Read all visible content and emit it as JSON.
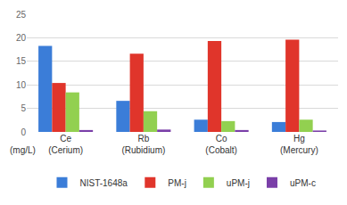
{
  "chart_data": {
    "type": "bar",
    "categories": [
      "Ce\n(Cerium)",
      "Rb\n(Rubidium)",
      "Co\n(Cobalt)",
      "Hg\n(Mercury)"
    ],
    "series": [
      {
        "name": "NIST-1648a",
        "color": "#3b7dd8",
        "values": [
          18.3,
          6.6,
          2.6,
          2.1
        ]
      },
      {
        "name": "PM-j",
        "color": "#e0352b",
        "values": [
          10.4,
          16.6,
          19.3,
          19.6
        ]
      },
      {
        "name": "uPM-j",
        "color": "#92d050",
        "values": [
          8.4,
          4.4,
          2.3,
          2.6
        ]
      },
      {
        "name": "uPM-c",
        "color": "#7a3fa8",
        "values": [
          0.4,
          0.5,
          0.4,
          0.3
        ]
      }
    ],
    "ylabel": "(mg/L)",
    "ylim": [
      0,
      25
    ],
    "yticks": [
      0,
      5,
      10,
      15,
      20,
      25
    ],
    "grid": true,
    "legend": "bottom"
  }
}
